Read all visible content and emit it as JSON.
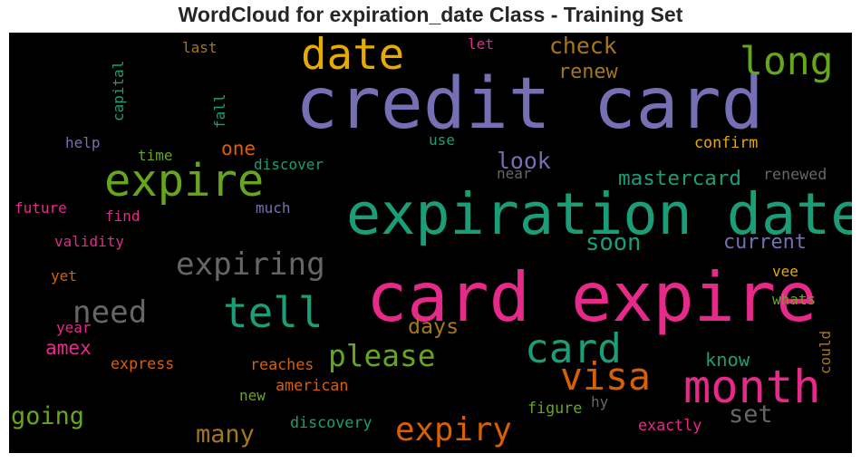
{
  "chart_data": {
    "type": "wordcloud",
    "title": "WordCloud for expiration_date Class - Training Set",
    "background": "#000000",
    "colormap": [
      "#1b9e77",
      "#d95f02",
      "#7570b3",
      "#e7298a",
      "#66a61e",
      "#e6ab02",
      "#a6761d",
      "#666666"
    ],
    "words": [
      {
        "text": "credit card",
        "color": "#7570b3",
        "weight": 100
      },
      {
        "text": "card expire",
        "color": "#e7298a",
        "weight": 96
      },
      {
        "text": "expiration date",
        "color": "#1b9e77",
        "weight": 80
      },
      {
        "text": "month",
        "color": "#e7298a",
        "weight": 62
      },
      {
        "text": "expire",
        "color": "#66a61e",
        "weight": 60
      },
      {
        "text": "date",
        "color": "#e6ab02",
        "weight": 58
      },
      {
        "text": "tell",
        "color": "#1b9e77",
        "weight": 56
      },
      {
        "text": "card",
        "color": "#1b9e77",
        "weight": 54
      },
      {
        "text": "long",
        "color": "#66a61e",
        "weight": 52
      },
      {
        "text": "visa",
        "color": "#d95f02",
        "weight": 50
      },
      {
        "text": "expiry",
        "color": "#d95f02",
        "weight": 42
      },
      {
        "text": "expiring",
        "color": "#666666",
        "weight": 40
      },
      {
        "text": "need",
        "color": "#666666",
        "weight": 40
      },
      {
        "text": "please",
        "color": "#66a61e",
        "weight": 38
      },
      {
        "text": "going",
        "color": "#66a61e",
        "weight": 30
      },
      {
        "text": "many",
        "color": "#a6761d",
        "weight": 30
      },
      {
        "text": "set",
        "color": "#666666",
        "weight": 30
      },
      {
        "text": "soon",
        "color": "#1b9e77",
        "weight": 28
      },
      {
        "text": "check",
        "color": "#a6761d",
        "weight": 27
      },
      {
        "text": "look",
        "color": "#7570b3",
        "weight": 27
      },
      {
        "text": "days",
        "color": "#a6761d",
        "weight": 25
      },
      {
        "text": "mastercard",
        "color": "#1b9e77",
        "weight": 24
      },
      {
        "text": "current",
        "color": "#7570b3",
        "weight": 23
      },
      {
        "text": "renew",
        "color": "#a6761d",
        "weight": 23
      },
      {
        "text": "amex",
        "color": "#e7298a",
        "weight": 22
      },
      {
        "text": "one",
        "color": "#d95f02",
        "weight": 22
      },
      {
        "text": "know",
        "color": "#1b9e77",
        "weight": 21
      },
      {
        "text": "express",
        "color": "#d95f02",
        "weight": 16
      },
      {
        "text": "reaches",
        "color": "#d95f02",
        "weight": 16
      },
      {
        "text": "american",
        "color": "#d95f02",
        "weight": 16
      },
      {
        "text": "discovery",
        "color": "#1b9e77",
        "weight": 16
      },
      {
        "text": "figure",
        "color": "#66a61e",
        "weight": 16
      },
      {
        "text": "exactly",
        "color": "#e7298a",
        "weight": 16
      },
      {
        "text": "confirm",
        "color": "#e6ab02",
        "weight": 16
      },
      {
        "text": "renewed",
        "color": "#666666",
        "weight": 16
      },
      {
        "text": "discover",
        "color": "#1b9e77",
        "weight": 15
      },
      {
        "text": "validity",
        "color": "#e7298a",
        "weight": 15
      },
      {
        "text": "future",
        "color": "#e7298a",
        "weight": 15
      },
      {
        "text": "capital",
        "color": "#1b9e77",
        "weight": 15
      },
      {
        "text": "last",
        "color": "#a6761d",
        "weight": 15
      },
      {
        "text": "let",
        "color": "#e7298a",
        "weight": 15
      },
      {
        "text": "help",
        "color": "#7570b3",
        "weight": 15
      },
      {
        "text": "time",
        "color": "#66a61e",
        "weight": 15
      },
      {
        "text": "fall",
        "color": "#1b9e77",
        "weight": 15
      },
      {
        "text": "use",
        "color": "#1b9e77",
        "weight": 15
      },
      {
        "text": "much",
        "color": "#7570b3",
        "weight": 15
      },
      {
        "text": "find",
        "color": "#e7298a",
        "weight": 15
      },
      {
        "text": "yet",
        "color": "#d95f02",
        "weight": 15
      },
      {
        "text": "year",
        "color": "#e7298a",
        "weight": 15
      },
      {
        "text": "new",
        "color": "#66a61e",
        "weight": 15
      },
      {
        "text": "near",
        "color": "#666666",
        "weight": 15
      },
      {
        "text": "vee",
        "color": "#e6ab02",
        "weight": 15
      },
      {
        "text": "whats",
        "color": "#66a61e",
        "weight": 15
      },
      {
        "text": "could",
        "color": "#a6761d",
        "weight": 15
      },
      {
        "text": "hy",
        "color": "#666666",
        "weight": 15
      }
    ]
  }
}
